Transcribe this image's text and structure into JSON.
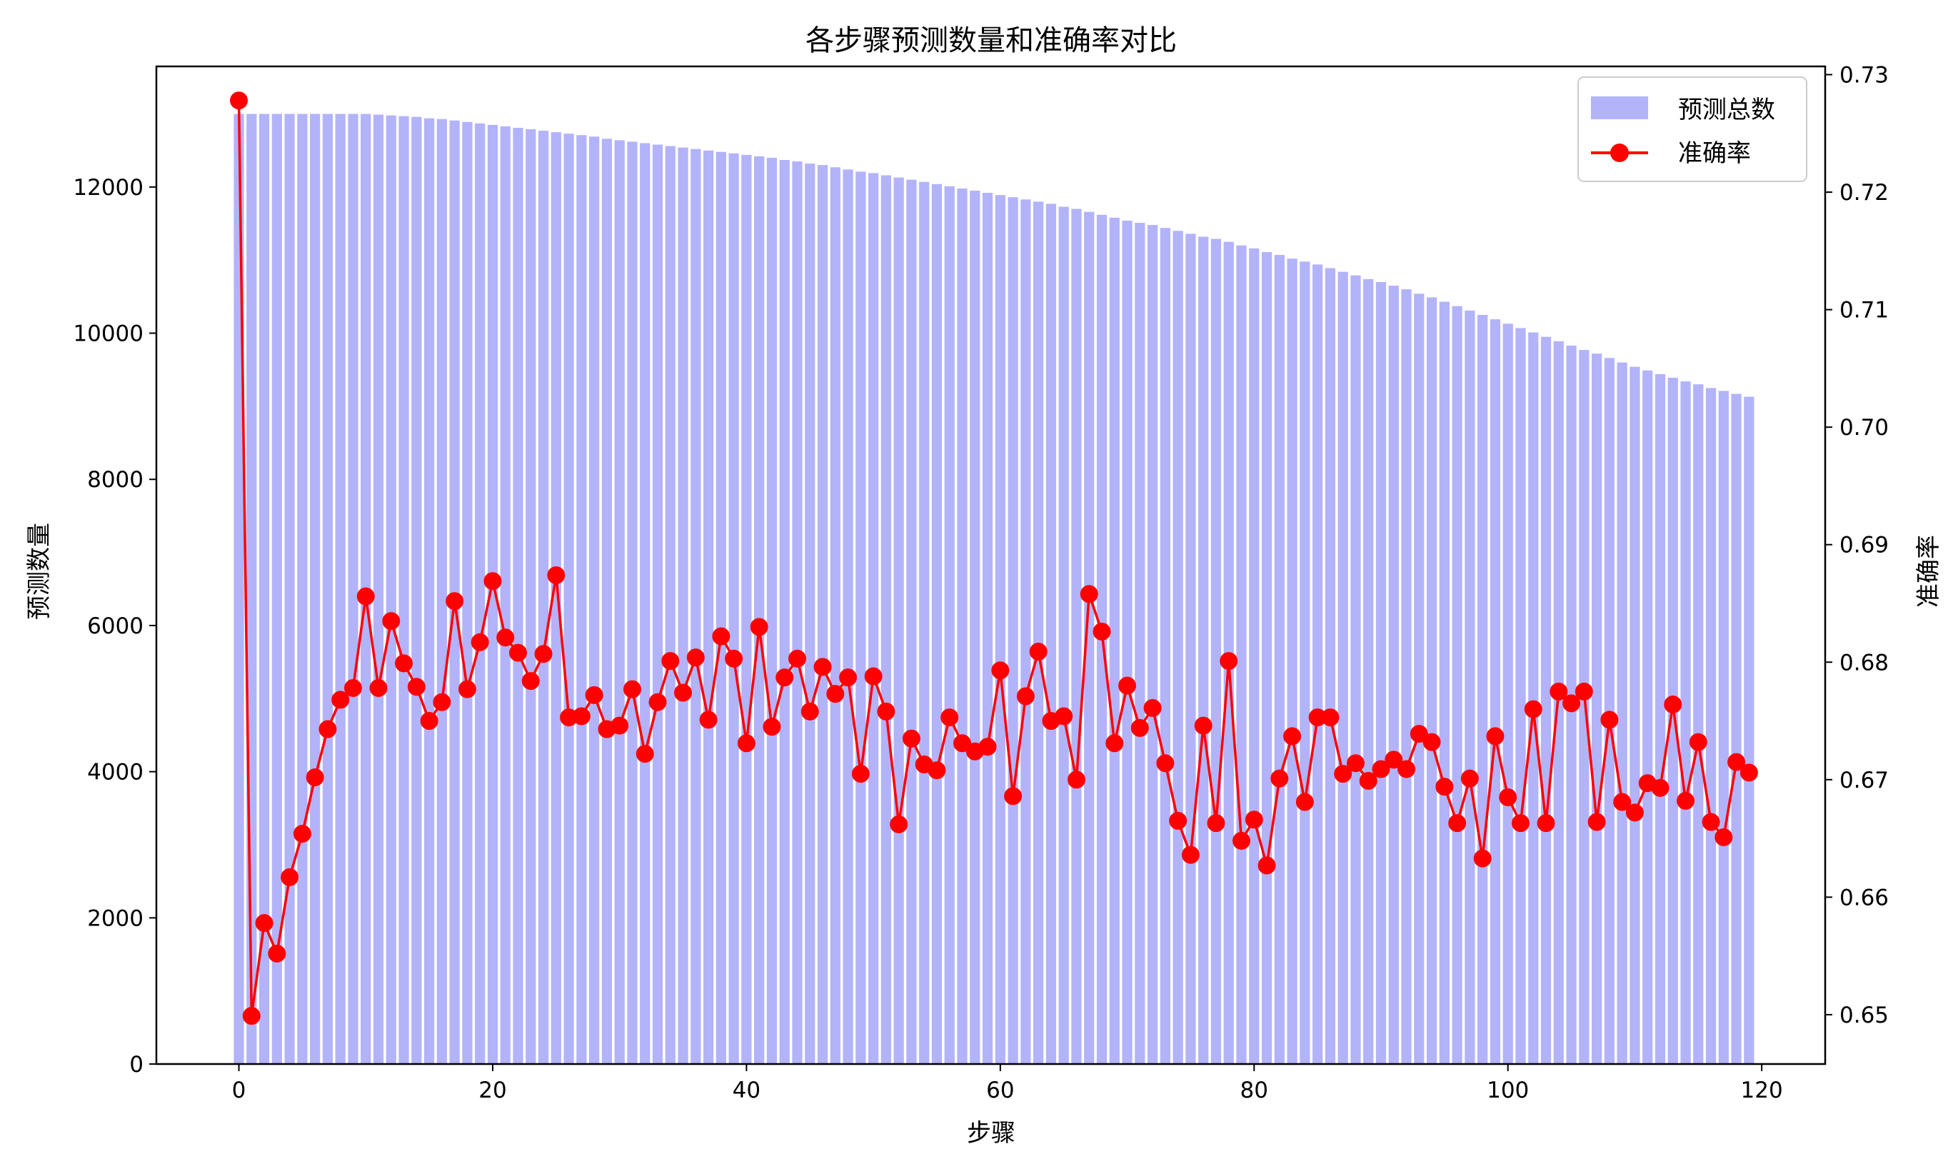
{
  "chart_data": {
    "type": "bar",
    "title": "各步骤预测数量和准确率对比",
    "xlabel": "步骤",
    "ylabel_left": "预测数量",
    "ylabel_right": "准确率",
    "xlim": [
      -6.5,
      125
    ],
    "ylim_left": [
      0,
      13650
    ],
    "ylim_right": [
      0.6458,
      0.7307
    ],
    "xticks": [
      0,
      20,
      40,
      60,
      80,
      100,
      120
    ],
    "yticks_left": [
      0,
      2000,
      4000,
      6000,
      8000,
      10000,
      12000
    ],
    "yticks_right": [
      0.65,
      0.66,
      0.67,
      0.68,
      0.69,
      0.7,
      0.71,
      0.72,
      0.73
    ],
    "grid": false,
    "legend_position": "top-right",
    "colors": {
      "bars": "#b3b3fa",
      "line": "#ff0000"
    },
    "series": [
      {
        "name": "预测总数",
        "type": "bar",
        "axis": "left",
        "values": [
          13000,
          13000,
          13000,
          13000,
          13000,
          13000,
          13000,
          13000,
          13000,
          13000,
          13000,
          12990,
          12980,
          12970,
          12960,
          12940,
          12930,
          12910,
          12890,
          12870,
          12850,
          12830,
          12810,
          12790,
          12770,
          12750,
          12730,
          12710,
          12690,
          12660,
          12640,
          12620,
          12600,
          12580,
          12560,
          12540,
          12520,
          12500,
          12480,
          12460,
          12440,
          12420,
          12400,
          12370,
          12350,
          12320,
          12300,
          12270,
          12240,
          12210,
          12190,
          12160,
          12130,
          12100,
          12070,
          12040,
          12010,
          11980,
          11950,
          11920,
          11890,
          11860,
          11830,
          11800,
          11770,
          11730,
          11700,
          11660,
          11620,
          11580,
          11540,
          11510,
          11480,
          11440,
          11400,
          11360,
          11320,
          11290,
          11250,
          11200,
          11160,
          11110,
          11070,
          11020,
          10980,
          10940,
          10890,
          10840,
          10790,
          10740,
          10700,
          10650,
          10600,
          10540,
          10490,
          10430,
          10370,
          10310,
          10250,
          10190,
          10130,
          10070,
          10010,
          9950,
          9890,
          9830,
          9770,
          9720,
          9660,
          9600,
          9540,
          9490,
          9440,
          9390,
          9340,
          9300,
          9250,
          9210,
          9170,
          9130
        ]
      },
      {
        "name": "准确率",
        "type": "line",
        "axis": "right",
        "values": [
          0.7278,
          0.6499,
          0.6578,
          0.6552,
          0.6617,
          0.6654,
          0.6702,
          0.6743,
          0.6768,
          0.6778,
          0.6856,
          0.6778,
          0.6835,
          0.6799,
          0.6779,
          0.675,
          0.6766,
          0.6852,
          0.6777,
          0.6817,
          0.6869,
          0.6821,
          0.6808,
          0.6784,
          0.6807,
          0.6874,
          0.6753,
          0.6754,
          0.6772,
          0.6743,
          0.6746,
          0.6777,
          0.6722,
          0.6766,
          0.6801,
          0.6774,
          0.6804,
          0.6751,
          0.6822,
          0.6803,
          0.6731,
          0.683,
          0.6745,
          0.6787,
          0.6803,
          0.6758,
          0.6796,
          0.6773,
          0.6787,
          0.6705,
          0.6788,
          0.6758,
          0.6662,
          0.6735,
          0.6713,
          0.6708,
          0.6753,
          0.6731,
          0.6724,
          0.6728,
          0.6793,
          0.6686,
          0.6771,
          0.6809,
          0.675,
          0.6754,
          0.67,
          0.6858,
          0.6826,
          0.6731,
          0.678,
          0.6744,
          0.6761,
          0.6714,
          0.6665,
          0.6636,
          0.6746,
          0.6663,
          0.6801,
          0.6648,
          0.6666,
          0.6627,
          0.6701,
          0.6737,
          0.6681,
          0.6753,
          0.6753,
          0.6705,
          0.6714,
          0.6699,
          0.6709,
          0.6717,
          0.6709,
          0.6739,
          0.6732,
          0.6694,
          0.6663,
          0.6701,
          0.6633,
          0.6737,
          0.6685,
          0.6663,
          0.676,
          0.6663,
          0.6775,
          0.6765,
          0.6775,
          0.6664,
          0.6751,
          0.6681,
          0.6672,
          0.6697,
          0.6693,
          0.6764,
          0.6682,
          0.6732,
          0.6664,
          0.6651,
          0.6715,
          0.6706
        ]
      }
    ]
  }
}
